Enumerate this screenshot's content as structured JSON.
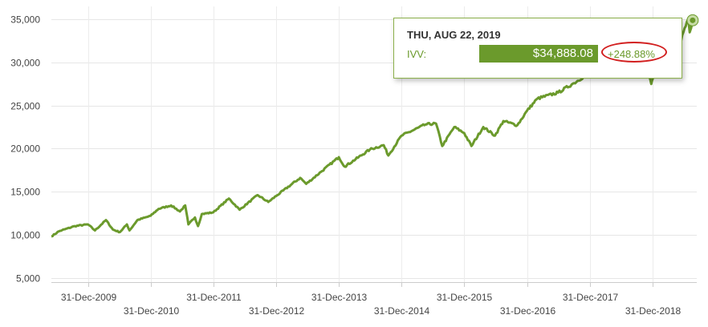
{
  "chart_data": {
    "type": "line",
    "series": [
      {
        "name": "IVV",
        "points": [
          [
            "2009-06-01",
            9800
          ],
          [
            "2009-07-15",
            10400
          ],
          [
            "2009-10-15",
            11000
          ],
          [
            "2009-12-31",
            11200
          ],
          [
            "2010-02-10",
            10500
          ],
          [
            "2010-04-15",
            11700
          ],
          [
            "2010-05-25",
            10600
          ],
          [
            "2010-07-05",
            10300
          ],
          [
            "2010-08-15",
            11200
          ],
          [
            "2010-08-30",
            10500
          ],
          [
            "2010-10-15",
            11700
          ],
          [
            "2010-12-31",
            12200
          ],
          [
            "2011-02-15",
            13000
          ],
          [
            "2011-04-29",
            13400
          ],
          [
            "2011-06-20",
            12700
          ],
          [
            "2011-07-20",
            13400
          ],
          [
            "2011-08-08",
            11200
          ],
          [
            "2011-09-15",
            12000
          ],
          [
            "2011-10-03",
            11000
          ],
          [
            "2011-10-25",
            12400
          ],
          [
            "2011-12-31",
            12600
          ],
          [
            "2012-03-31",
            14200
          ],
          [
            "2012-06-01",
            12900
          ],
          [
            "2012-09-14",
            14600
          ],
          [
            "2012-11-15",
            13800
          ],
          [
            "2012-12-31",
            14500
          ],
          [
            "2013-05-20",
            16600
          ],
          [
            "2013-06-24",
            15900
          ],
          [
            "2013-09-18",
            17300
          ],
          [
            "2013-12-31",
            19000
          ],
          [
            "2014-02-03",
            17900
          ],
          [
            "2014-06-30",
            19900
          ],
          [
            "2014-09-18",
            20400
          ],
          [
            "2014-10-15",
            19200
          ],
          [
            "2014-12-31",
            21500
          ],
          [
            "2015-05-20",
            22800
          ],
          [
            "2015-07-20",
            22900
          ],
          [
            "2015-08-25",
            20300
          ],
          [
            "2015-11-03",
            22500
          ],
          [
            "2015-12-31",
            21800
          ],
          [
            "2016-02-11",
            20300
          ],
          [
            "2016-04-20",
            22500
          ],
          [
            "2016-06-27",
            21500
          ],
          [
            "2016-08-15",
            23200
          ],
          [
            "2016-11-04",
            22700
          ],
          [
            "2016-12-31",
            24400
          ],
          [
            "2017-03-01",
            25800
          ],
          [
            "2017-06-30",
            26500
          ],
          [
            "2017-09-30",
            27600
          ],
          [
            "2017-12-31",
            28800
          ],
          [
            "2018-01-26",
            31000
          ],
          [
            "2018-02-08",
            28500
          ],
          [
            "2018-03-09",
            30500
          ],
          [
            "2018-04-02",
            28700
          ],
          [
            "2018-06-15",
            30500
          ],
          [
            "2018-09-20",
            32200
          ],
          [
            "2018-10-25",
            29800
          ],
          [
            "2018-11-08",
            31000
          ],
          [
            "2018-12-24",
            27500
          ],
          [
            "2018-12-31",
            28000
          ],
          [
            "2019-02-15",
            31500
          ],
          [
            "2019-04-30",
            33900
          ],
          [
            "2019-06-03",
            31900
          ],
          [
            "2019-07-26",
            35000
          ],
          [
            "2019-08-05",
            33500
          ],
          [
            "2019-08-22",
            34888
          ]
        ]
      }
    ],
    "x_type": "date",
    "xlim": [
      "2009-06-01",
      "2019-09-15"
    ],
    "x_ticks": [
      "31-Dec-2009",
      "31-Dec-2010",
      "31-Dec-2011",
      "31-Dec-2012",
      "31-Dec-2013",
      "31-Dec-2014",
      "31-Dec-2015",
      "31-Dec-2016",
      "31-Dec-2017",
      "31-Dec-2018"
    ],
    "y_ticks": [
      "5,000",
      "10,000",
      "15,000",
      "20,000",
      "25,000",
      "30,000",
      "35,000"
    ],
    "ylim": [
      4500,
      36500
    ],
    "grid": true,
    "line_color": "#6b9a2c",
    "tooltip": {
      "date": "THU, AUG 22, 2019",
      "series": "IVV:",
      "value": "$34,888.08",
      "change": "+248.88%",
      "highlight_color": "#d21f1f"
    }
  }
}
